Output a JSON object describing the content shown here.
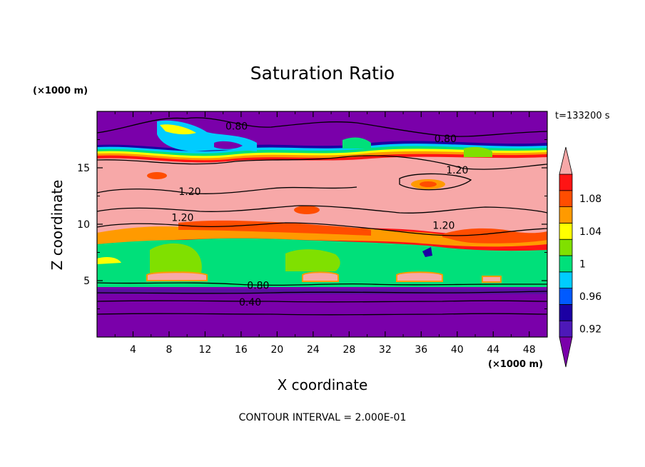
{
  "chart_data": {
    "type": "heatmap",
    "title": "Saturation Ratio",
    "xlabel": "X coordinate",
    "ylabel": "Z coordinate",
    "x_units": "(×1000 m)",
    "y_units": "(×1000 m)",
    "time_label": "t=133200 s",
    "footer": "CONTOUR INTERVAL = 2.000E-01",
    "xlim": [
      0,
      50
    ],
    "ylim": [
      0,
      20
    ],
    "x_ticks": [
      "4",
      "8",
      "12",
      "16",
      "20",
      "24",
      "28",
      "32",
      "36",
      "40",
      "44",
      "48"
    ],
    "y_ticks": [
      "5",
      "10",
      "15"
    ],
    "contour_labels": [
      {
        "text": "0.80",
        "x": 15.5,
        "z": 18.7
      },
      {
        "text": "0.80",
        "x": 38.7,
        "z": 17.6
      },
      {
        "text": "1.20",
        "x": 40.0,
        "z": 14.8
      },
      {
        "text": "1.20",
        "x": 10.3,
        "z": 12.9
      },
      {
        "text": "1.20",
        "x": 9.5,
        "z": 10.6
      },
      {
        "text": "1.20",
        "x": 38.5,
        "z": 9.9
      },
      {
        "text": "0.80",
        "x": 17.9,
        "z": 4.6
      },
      {
        "text": "0.40",
        "x": 17.0,
        "z": 3.1
      }
    ],
    "colorbar": {
      "labels": [
        "1.08",
        "1.04",
        "1",
        "0.96",
        "0.92"
      ],
      "levels": [
        0.92,
        0.94,
        0.96,
        0.98,
        1.0,
        1.02,
        1.04,
        1.06,
        1.08,
        1.1
      ],
      "colors": [
        "#7a00aa",
        "#4d18b8",
        "#1b00a3",
        "#005aff",
        "#00ccff",
        "#00e07a",
        "#80e000",
        "#ffff00",
        "#ff9a00",
        "#ff4d00",
        "#ff1414",
        "#f7a8a8"
      ]
    }
  }
}
